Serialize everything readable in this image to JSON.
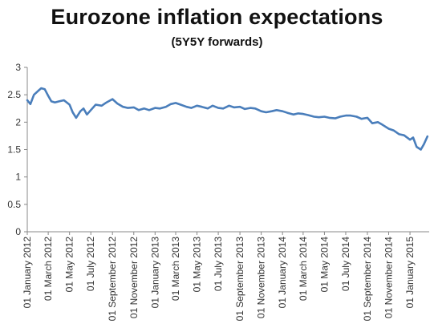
{
  "chart_data": {
    "type": "line",
    "title": "Eurozone inflation expectations",
    "subtitle": "(5Y5Y forwards)",
    "xlabel": "",
    "ylabel": "",
    "ylim": [
      0,
      3
    ],
    "yticks": [
      "0",
      "0.5",
      "1",
      "1.5",
      "2",
      "2.5",
      "3"
    ],
    "xtick_labels": [
      "01 January 2012",
      "01 March 2012",
      "01 May 2012",
      "01 July 2012",
      "01 September 2012",
      "01 November 2012",
      "01 January 2013",
      "01 March 2013",
      "01 May 2013",
      "01 July 2013",
      "01 September 2013",
      "01 November 2013",
      "01 January 2014",
      "01 March 2014",
      "01 May 2014",
      "01 July 2014",
      "01 September 2014",
      "01 November 2014",
      "01 January 2015"
    ],
    "grid": false,
    "legend": "none",
    "line_color": "#4a7ebb",
    "series": [
      {
        "x": [
          "2012-01-01",
          "2012-01-10",
          "2012-01-20",
          "2012-02-01",
          "2012-02-10",
          "2012-02-20",
          "2012-03-01",
          "2012-03-10",
          "2012-03-20",
          "2012-04-01",
          "2012-04-15",
          "2012-05-01",
          "2012-05-10",
          "2012-05-20",
          "2012-06-01",
          "2012-06-10",
          "2012-06-20",
          "2012-07-01",
          "2012-07-15",
          "2012-08-01",
          "2012-08-15",
          "2012-09-01",
          "2012-09-15",
          "2012-10-01",
          "2012-10-15",
          "2012-11-01",
          "2012-11-15",
          "2012-12-01",
          "2012-12-15",
          "2013-01-01",
          "2013-01-15",
          "2013-02-01",
          "2013-02-15",
          "2013-03-01",
          "2013-03-15",
          "2013-04-01",
          "2013-04-15",
          "2013-05-01",
          "2013-05-15",
          "2013-06-01",
          "2013-06-15",
          "2013-07-01",
          "2013-07-15",
          "2013-08-01",
          "2013-08-15",
          "2013-09-01",
          "2013-09-15",
          "2013-10-01",
          "2013-10-15",
          "2013-11-01",
          "2013-11-15",
          "2013-12-01",
          "2013-12-15",
          "2014-01-01",
          "2014-01-15",
          "2014-02-01",
          "2014-02-15",
          "2014-03-01",
          "2014-03-15",
          "2014-04-01",
          "2014-04-15",
          "2014-05-01",
          "2014-05-15",
          "2014-06-01",
          "2014-06-15",
          "2014-07-01",
          "2014-07-15",
          "2014-08-01",
          "2014-08-15",
          "2014-09-01",
          "2014-09-15",
          "2014-10-01",
          "2014-10-15",
          "2014-11-01",
          "2014-11-15",
          "2014-12-01",
          "2014-12-15",
          "2015-01-01",
          "2015-01-10",
          "2015-01-20",
          "2015-02-01",
          "2015-02-10",
          "2015-02-20"
        ],
        "y": [
          2.4,
          2.33,
          2.5,
          2.57,
          2.62,
          2.6,
          2.48,
          2.38,
          2.36,
          2.38,
          2.4,
          2.32,
          2.18,
          2.08,
          2.2,
          2.25,
          2.14,
          2.22,
          2.32,
          2.3,
          2.36,
          2.42,
          2.34,
          2.28,
          2.26,
          2.27,
          2.22,
          2.25,
          2.22,
          2.26,
          2.25,
          2.28,
          2.33,
          2.35,
          2.32,
          2.28,
          2.26,
          2.3,
          2.28,
          2.25,
          2.3,
          2.26,
          2.25,
          2.3,
          2.27,
          2.28,
          2.24,
          2.26,
          2.25,
          2.2,
          2.18,
          2.2,
          2.22,
          2.2,
          2.17,
          2.14,
          2.16,
          2.15,
          2.13,
          2.1,
          2.09,
          2.1,
          2.08,
          2.07,
          2.1,
          2.12,
          2.12,
          2.1,
          2.06,
          2.08,
          1.98,
          2.0,
          1.95,
          1.88,
          1.85,
          1.78,
          1.76,
          1.68,
          1.72,
          1.55,
          1.5,
          1.6,
          1.74
        ]
      }
    ]
  }
}
